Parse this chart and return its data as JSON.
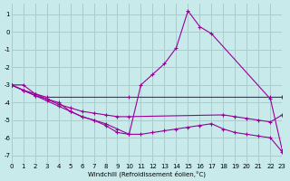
{
  "xlabel": "Windchill (Refroidissement éolien,°C)",
  "bg_color": "#c8eaea",
  "grid_color": "#aacccc",
  "line_color": "#990099",
  "xlim": [
    0,
    23
  ],
  "ylim": [
    -7.4,
    1.6
  ],
  "xticks": [
    0,
    1,
    2,
    3,
    4,
    5,
    6,
    7,
    8,
    9,
    10,
    11,
    12,
    13,
    14,
    15,
    16,
    17,
    18,
    19,
    20,
    21,
    22,
    23
  ],
  "yticks": [
    -7,
    -6,
    -5,
    -4,
    -3,
    -2,
    -1,
    0,
    1
  ],
  "series": [
    {
      "x": [
        0,
        1,
        2,
        3,
        4,
        5,
        6,
        7,
        8,
        9,
        10,
        11,
        12,
        13,
        14,
        15,
        16,
        17,
        22,
        23
      ],
      "y": [
        -3.0,
        -3.0,
        -3.5,
        -3.8,
        -4.0,
        -4.5,
        -4.8,
        -5.0,
        -5.3,
        -5.7,
        -5.8,
        -3.0,
        -2.4,
        -1.8,
        -0.9,
        1.2,
        0.3,
        -0.1,
        -3.8,
        -6.7
      ]
    },
    {
      "x": [
        0,
        1,
        2,
        3,
        10,
        22,
        23
      ],
      "y": [
        -3.0,
        -3.3,
        -3.5,
        -3.7,
        -3.7,
        -3.7,
        -3.7
      ]
    },
    {
      "x": [
        0,
        1,
        2,
        3,
        4,
        5,
        6,
        7,
        8,
        9,
        10,
        18,
        19,
        20,
        21,
        22,
        23
      ],
      "y": [
        -3.0,
        -3.3,
        -3.6,
        -3.8,
        -4.1,
        -4.3,
        -4.5,
        -4.6,
        -4.7,
        -4.8,
        -4.8,
        -4.7,
        -4.8,
        -4.9,
        -5.0,
        -5.1,
        -4.7
      ]
    },
    {
      "x": [
        0,
        1,
        2,
        3,
        4,
        5,
        6,
        7,
        8,
        9,
        10,
        11,
        12,
        13,
        14,
        15,
        16,
        17,
        18,
        19,
        20,
        21,
        22,
        23
      ],
      "y": [
        -3.0,
        -3.3,
        -3.6,
        -3.9,
        -4.2,
        -4.5,
        -4.8,
        -5.0,
        -5.2,
        -5.5,
        -5.8,
        -5.8,
        -5.7,
        -5.6,
        -5.5,
        -5.4,
        -5.3,
        -5.2,
        -5.5,
        -5.7,
        -5.8,
        -5.9,
        -6.0,
        -6.8
      ]
    }
  ]
}
